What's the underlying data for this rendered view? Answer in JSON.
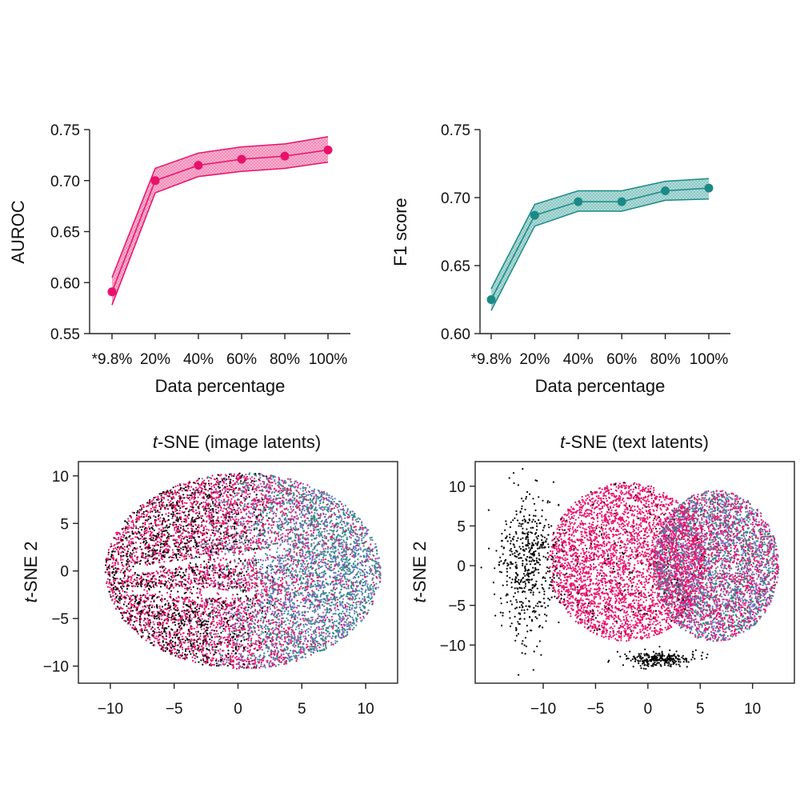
{
  "chart_data": [
    {
      "type": "line",
      "id": "auroc",
      "color": "#e8126c",
      "categories": [
        "*9.8%",
        "20%",
        "40%",
        "60%",
        "80%",
        "100%"
      ],
      "values": [
        0.591,
        0.7,
        0.715,
        0.721,
        0.724,
        0.73
      ],
      "lower": [
        0.578,
        0.688,
        0.704,
        0.709,
        0.712,
        0.718
      ],
      "upper": [
        0.605,
        0.712,
        0.727,
        0.733,
        0.736,
        0.743
      ],
      "xlabel": "Data percentage",
      "ylabel": "AUROC",
      "ylim": [
        0.55,
        0.75
      ],
      "yticks": [
        "0.55",
        "0.60",
        "0.65",
        "0.70",
        "0.75"
      ]
    },
    {
      "type": "line",
      "id": "f1",
      "color": "#1a8a86",
      "categories": [
        "*9.8%",
        "20%",
        "40%",
        "60%",
        "80%",
        "100%"
      ],
      "values": [
        0.625,
        0.687,
        0.697,
        0.697,
        0.705,
        0.707
      ],
      "lower": [
        0.617,
        0.679,
        0.69,
        0.69,
        0.698,
        0.699
      ],
      "upper": [
        0.633,
        0.695,
        0.705,
        0.705,
        0.712,
        0.714
      ],
      "xlabel": "Data percentage",
      "ylabel": "F1 score",
      "ylim": [
        0.6,
        0.75
      ],
      "yticks": [
        "0.60",
        "0.65",
        "0.70",
        "0.75"
      ]
    },
    {
      "type": "scatter",
      "id": "tsne-image",
      "title_italic": "t",
      "title_rest": "-SNE (image latents)",
      "ylabel_italic": "t",
      "ylabel_rest": "-SNE 2",
      "xlim": [
        -12.5,
        12.5
      ],
      "ylim": [
        -11.8,
        11.5
      ],
      "xticks": [
        "−10",
        "−5",
        "0",
        "5",
        "10"
      ],
      "yticks": [
        "10",
        "5",
        "0",
        "−5",
        "−10"
      ],
      "series_colors": [
        "#000000",
        "#e8126c",
        "#2f8a8a",
        "#7b6fd6"
      ]
    },
    {
      "type": "scatter",
      "id": "tsne-text",
      "title_italic": "t",
      "title_rest": "-SNE (text latents)",
      "ylabel_italic": "t",
      "ylabel_rest": "-SNE 2",
      "xlim": [
        -16.5,
        14
      ],
      "ylim": [
        -14.8,
        13.1
      ],
      "xticks": [
        "−10",
        "−5",
        "0",
        "5",
        "10"
      ],
      "yticks": [
        "10",
        "5",
        "0",
        "−5",
        "−10"
      ],
      "series_colors": [
        "#000000",
        "#e8126c",
        "#2f8a8a",
        "#7b6fd6"
      ]
    }
  ]
}
